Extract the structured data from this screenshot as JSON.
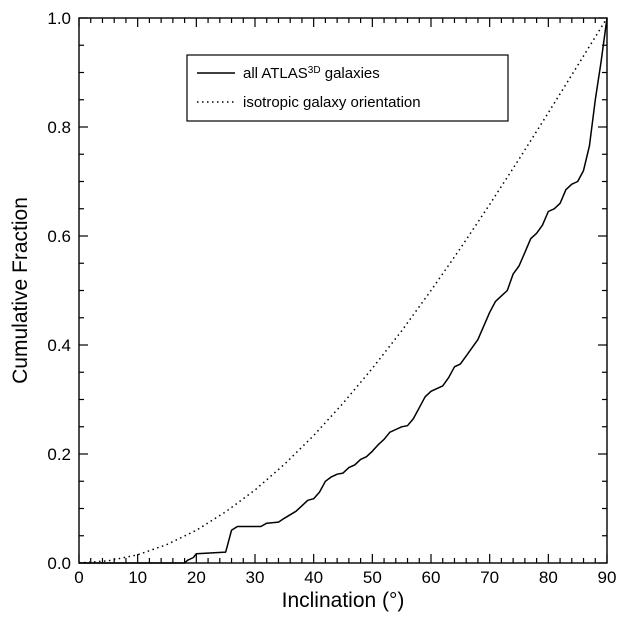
{
  "chart_data": {
    "type": "line",
    "xlabel": "Inclination (°)",
    "ylabel": "Cumulative Fraction",
    "xlim": [
      0,
      90
    ],
    "ylim": [
      0,
      1.0
    ],
    "xticks": [
      "0",
      "10",
      "20",
      "30",
      "40",
      "50",
      "60",
      "70",
      "80",
      "90"
    ],
    "yticks": [
      "0.0",
      "0.2",
      "0.4",
      "0.6",
      "0.8",
      "1.0"
    ],
    "grid": false,
    "legend_position": "top-right",
    "series": [
      {
        "name": "all ATLAS3D galaxies",
        "legend_main": "all ATLAS",
        "legend_sup": "3D",
        "legend_tail": " galaxies",
        "style": "solid",
        "x": [
          0,
          18,
          18.5,
          19.5,
          20,
          25,
          25.5,
          26,
          27,
          31,
          32,
          34,
          35,
          37,
          38,
          39,
          40,
          41,
          42,
          43,
          44,
          45,
          46,
          47,
          48,
          49,
          50,
          51,
          52,
          53,
          54,
          55,
          56,
          57,
          58,
          59,
          60,
          61,
          62,
          63,
          64,
          65,
          66,
          67,
          68,
          69,
          70,
          71,
          72,
          73,
          74,
          75,
          76,
          77,
          78,
          79,
          80,
          81,
          82,
          83,
          84,
          85,
          86,
          87,
          88,
          89,
          90
        ],
        "y": [
          0,
          0,
          0.005,
          0.01,
          0.017,
          0.02,
          0.04,
          0.06,
          0.067,
          0.067,
          0.073,
          0.075,
          0.082,
          0.095,
          0.105,
          0.115,
          0.118,
          0.13,
          0.15,
          0.158,
          0.163,
          0.165,
          0.175,
          0.18,
          0.19,
          0.195,
          0.205,
          0.217,
          0.227,
          0.24,
          0.245,
          0.25,
          0.252,
          0.265,
          0.285,
          0.305,
          0.315,
          0.32,
          0.325,
          0.34,
          0.36,
          0.365,
          0.38,
          0.395,
          0.41,
          0.435,
          0.46,
          0.48,
          0.49,
          0.5,
          0.53,
          0.545,
          0.57,
          0.595,
          0.605,
          0.62,
          0.645,
          0.65,
          0.66,
          0.685,
          0.695,
          0.7,
          0.72,
          0.765,
          0.85,
          0.92,
          1.0
        ]
      },
      {
        "name": "isotropic galaxy orientation",
        "style": "dotted",
        "x": [
          0,
          5,
          10,
          15,
          20,
          25,
          30,
          35,
          40,
          45,
          50,
          55,
          60,
          65,
          70,
          75,
          80,
          85,
          90
        ],
        "y": [
          0,
          0.004,
          0.015,
          0.034,
          0.06,
          0.094,
          0.134,
          0.181,
          0.234,
          0.293,
          0.357,
          0.426,
          0.5,
          0.577,
          0.658,
          0.741,
          0.826,
          0.913,
          1.0
        ]
      }
    ]
  }
}
